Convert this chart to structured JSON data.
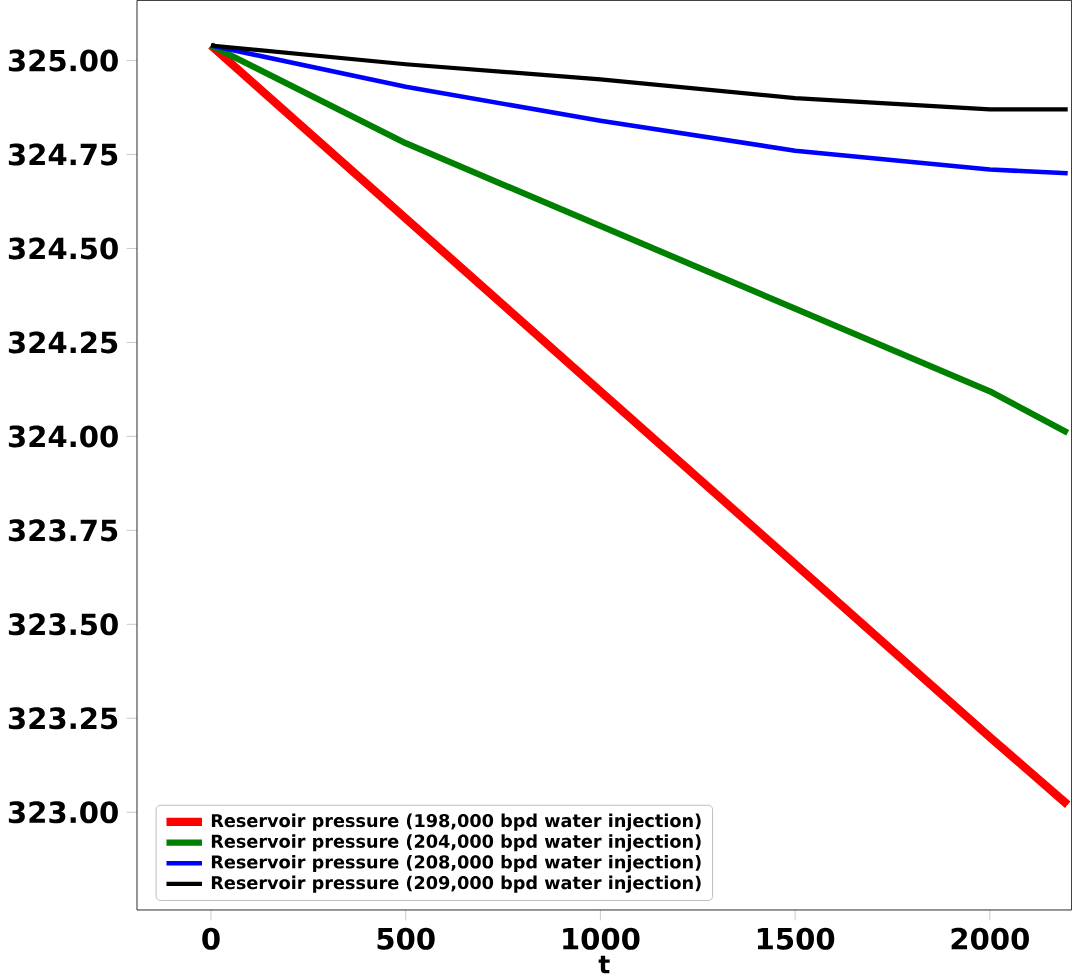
{
  "chart_data": {
    "type": "line",
    "xlabel": "t",
    "x": [
      0,
      500,
      1000,
      1500,
      2000,
      2200
    ],
    "xlim": [
      -190,
      2210
    ],
    "xticks": [
      0,
      500,
      1000,
      1500,
      2000
    ],
    "ylim": [
      322.74,
      325.16
    ],
    "yticks": [
      {
        "value": 323.0,
        "label": "323.00"
      },
      {
        "value": 323.25,
        "label": "323.25"
      },
      {
        "value": 323.5,
        "label": "323.50"
      },
      {
        "value": 323.75,
        "label": "323.75"
      },
      {
        "value": 324.0,
        "label": "324.00"
      },
      {
        "value": 324.25,
        "label": "324.25"
      },
      {
        "value": 324.5,
        "label": "324.50"
      },
      {
        "value": 324.75,
        "label": "324.75"
      },
      {
        "value": 325.0,
        "label": "325.00"
      }
    ],
    "legend": "bottom left",
    "grid": false,
    "line_style": "solid",
    "marker": "none",
    "series": [
      {
        "name": "Reservoir pressure (198,000 bpd water injection)",
        "color": "#ff0000",
        "values": [
          325.04,
          324.58,
          324.12,
          323.66,
          323.2,
          323.02
        ]
      },
      {
        "name": "Reservoir pressure (204,000 bpd water injection)",
        "color": "#008000",
        "values": [
          325.04,
          324.78,
          324.56,
          324.34,
          324.12,
          324.01
        ]
      },
      {
        "name": "Reservoir pressure (208,000 bpd water injection)",
        "color": "#0000ff",
        "values": [
          325.04,
          324.93,
          324.84,
          324.76,
          324.71,
          324.7
        ]
      },
      {
        "name": "Reservoir pressure (209,000 bpd water injection)",
        "color": "#000000",
        "values": [
          325.04,
          324.99,
          324.95,
          324.9,
          324.87,
          324.87
        ]
      }
    ]
  }
}
